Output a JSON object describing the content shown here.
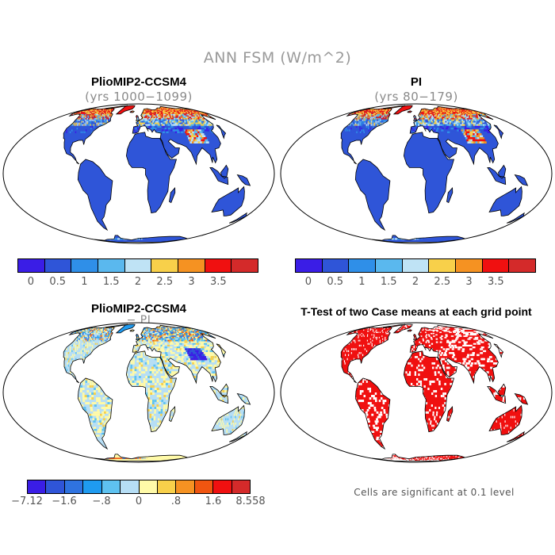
{
  "figure": {
    "title": "ANN FSM (W/m^2)"
  },
  "panels": [
    {
      "id": "pliomip",
      "title": "PlioMIP2-CCSM4",
      "subtitle": "(yrs 1000−1099)",
      "kind": "field",
      "field_label": "FSM"
    },
    {
      "id": "pi",
      "title": "PI",
      "subtitle": "(yrs 80−179)",
      "kind": "field",
      "field_label": "FSM"
    },
    {
      "id": "diff",
      "title": "PlioMIP2-CCSM4",
      "subtitle": "− PI",
      "kind": "difference"
    },
    {
      "id": "ttest",
      "title": "T-Test of two Case means at each grid point",
      "subtitle": "",
      "kind": "significance",
      "note": "Cells are significant at 0.1 level"
    }
  ],
  "colorbars": {
    "absolute": {
      "colors": [
        "#3a1de6",
        "#2f55d8",
        "#2f8fe8",
        "#5ab8ee",
        "#bfe3f5",
        "#f8d04a",
        "#f59222",
        "#f01010",
        "#d42a2a"
      ],
      "labels": [
        "0",
        "0.5",
        "1",
        "1.5",
        "2",
        "2.5",
        "3",
        "3.5"
      ]
    },
    "difference": {
      "colors": [
        "#3a1de6",
        "#2f55d8",
        "#2f73e0",
        "#1f9bf0",
        "#5ec2f0",
        "#b6def5",
        "#fffaa8",
        "#f8d04a",
        "#f59222",
        "#f05510",
        "#f01010",
        "#d42a2a"
      ],
      "labels": [
        "−7.12",
        "−1.6",
        "−.8",
        "0",
        ".8",
        "1.6",
        "8.558"
      ]
    }
  },
  "map_colors": {
    "ocean": "#ffffff",
    "land_base": "#2f55d8",
    "outline": "#000000",
    "diff_base": "#b6def5",
    "diff_warm": "#fffaa8",
    "significant": "#f01010"
  }
}
